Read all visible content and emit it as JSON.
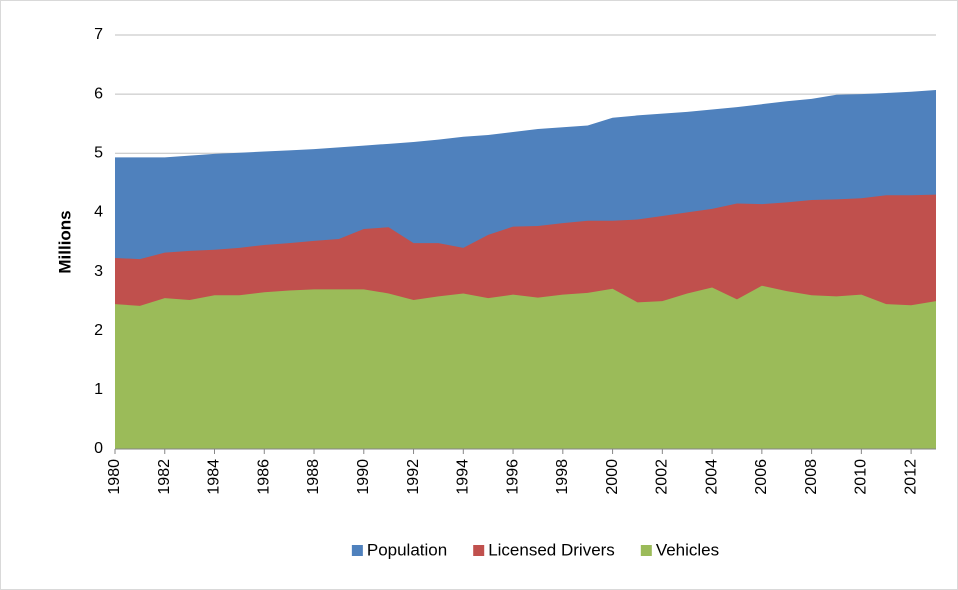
{
  "chart_data": {
    "type": "area",
    "ylabel": "Millions",
    "x": [
      1980,
      1981,
      1982,
      1983,
      1984,
      1985,
      1986,
      1987,
      1988,
      1989,
      1990,
      1991,
      1992,
      1993,
      1994,
      1995,
      1996,
      1997,
      1998,
      1999,
      2000,
      2001,
      2002,
      2003,
      2004,
      2005,
      2006,
      2007,
      2008,
      2009,
      2010,
      2011,
      2012,
      2013
    ],
    "xlim": [
      1980,
      2013
    ],
    "xticks": [
      1980,
      1982,
      1984,
      1986,
      1988,
      1990,
      1992,
      1994,
      1996,
      1998,
      2000,
      2002,
      2004,
      2006,
      2008,
      2010,
      2012
    ],
    "ylim": [
      0,
      7
    ],
    "yticks": [
      0,
      1,
      2,
      3,
      4,
      5,
      6,
      7
    ],
    "grid": true,
    "legend": "bottom",
    "series": [
      {
        "name": "Population",
        "color": "#4f81bd",
        "values": [
          4.93,
          4.93,
          4.93,
          4.96,
          4.99,
          5.01,
          5.03,
          5.05,
          5.07,
          5.1,
          5.13,
          5.16,
          5.19,
          5.23,
          5.28,
          5.31,
          5.36,
          5.41,
          5.44,
          5.47,
          5.6,
          5.64,
          5.67,
          5.7,
          5.74,
          5.78,
          5.83,
          5.88,
          5.92,
          5.99,
          6.0,
          6.02,
          6.04,
          6.07
        ]
      },
      {
        "name": "Licensed Drivers",
        "color": "#c0504d",
        "values": [
          3.23,
          3.21,
          3.32,
          3.35,
          3.37,
          3.4,
          3.45,
          3.48,
          3.52,
          3.55,
          3.72,
          3.75,
          3.48,
          3.48,
          3.4,
          3.62,
          3.76,
          3.77,
          3.82,
          3.86,
          3.86,
          3.88,
          3.94,
          4.0,
          4.06,
          4.15,
          4.14,
          4.17,
          4.21,
          4.22,
          4.24,
          4.29,
          4.29,
          4.3
        ]
      },
      {
        "name": "Vehicles",
        "color": "#9bbb59",
        "values": [
          2.45,
          2.42,
          2.55,
          2.52,
          2.6,
          2.6,
          2.65,
          2.68,
          2.7,
          2.7,
          2.7,
          2.63,
          2.52,
          2.58,
          2.63,
          2.55,
          2.61,
          2.56,
          2.61,
          2.64,
          2.71,
          2.48,
          2.5,
          2.63,
          2.73,
          2.53,
          2.76,
          2.67,
          2.6,
          2.58,
          2.61,
          2.45,
          2.43,
          2.5
        ]
      }
    ]
  }
}
